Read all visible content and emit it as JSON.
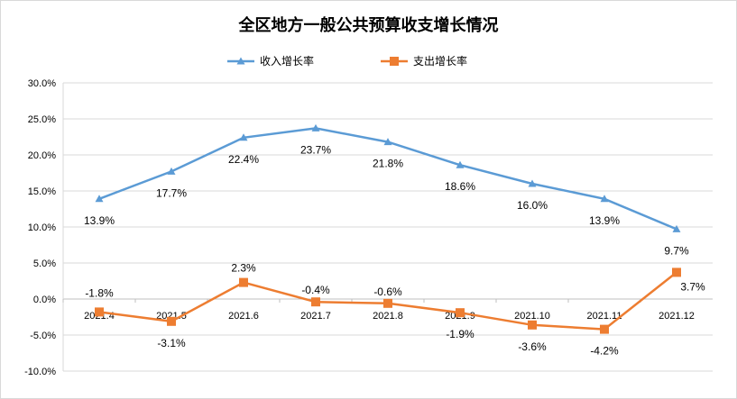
{
  "chart_data": {
    "type": "line",
    "title": "全区地方一般公共预算收支增长情况",
    "categories": [
      "2021.4",
      "2021.5",
      "2021.6",
      "2021.7",
      "2021.8",
      "2021.9",
      "2021.10",
      "2021.11",
      "2021.12"
    ],
    "series": [
      {
        "name": "收入增长率",
        "color": "#5b9bd5",
        "marker": "triangle",
        "values": [
          13.9,
          17.7,
          22.4,
          23.7,
          21.8,
          18.6,
          16.0,
          13.9,
          9.7
        ],
        "labels": [
          "13.9%",
          "17.7%",
          "22.4%",
          "23.7%",
          "21.8%",
          "18.6%",
          "16.0%",
          "13.9%",
          "9.7%"
        ]
      },
      {
        "name": "支出增长率",
        "color": "#ed7d31",
        "marker": "square",
        "values": [
          -1.8,
          -3.1,
          2.3,
          -0.4,
          -0.6,
          -1.9,
          -3.6,
          -4.2,
          3.7
        ],
        "labels": [
          "-1.8%",
          "-3.1%",
          "2.3%",
          "-0.4%",
          "-0.6%",
          "-1.9%",
          "-3.6%",
          "-4.2%",
          "3.7%"
        ]
      }
    ],
    "ylim": [
      -10,
      30
    ],
    "yticks": [
      "30.0%",
      "25.0%",
      "20.0%",
      "15.0%",
      "10.0%",
      "5.0%",
      "0.0%",
      "-5.0%",
      "-10.0%"
    ],
    "grid": true,
    "legend": "top-center"
  }
}
